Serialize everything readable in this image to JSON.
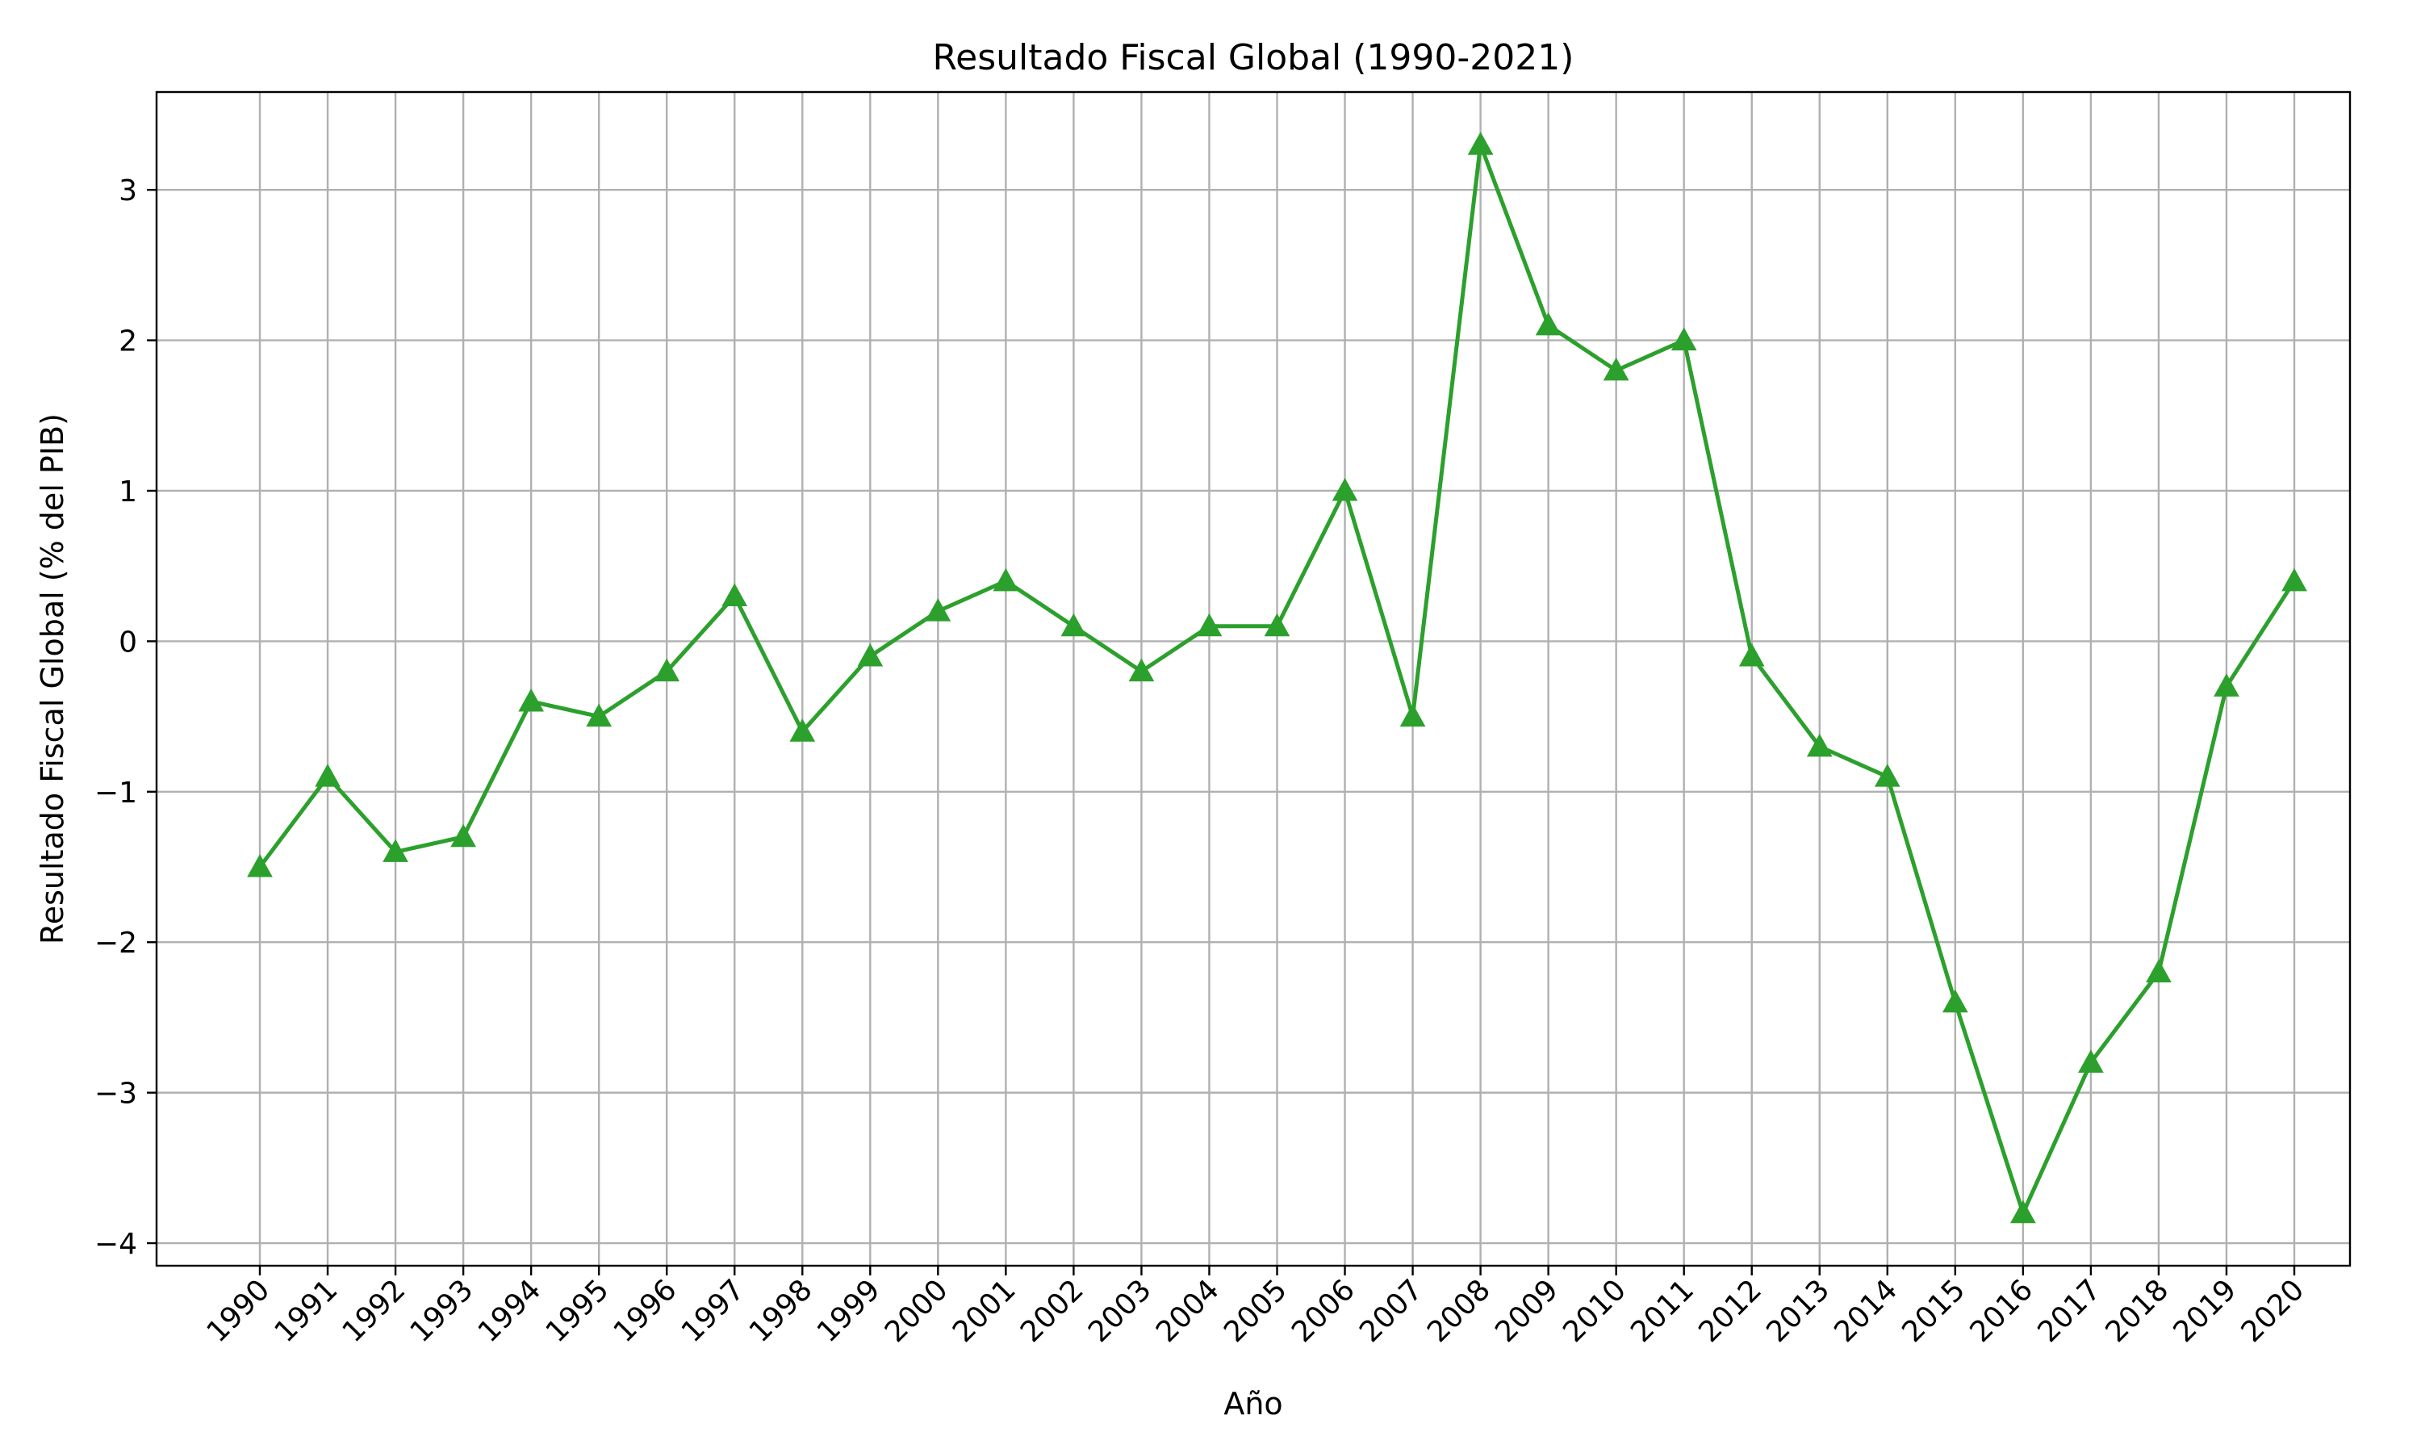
{
  "chart_data": {
    "type": "line",
    "title": "Resultado Fiscal Global (1990-2021)",
    "xlabel": "Año",
    "ylabel": "Resultado Fiscal Global (% del PIB)",
    "x": [
      "1990",
      "1991",
      "1992",
      "1993",
      "1994",
      "1995",
      "1996",
      "1997",
      "1998",
      "1999",
      "2000",
      "2001",
      "2002",
      "2003",
      "2004",
      "2005",
      "2006",
      "2007",
      "2008",
      "2009",
      "2010",
      "2011",
      "2012",
      "2013",
      "2014",
      "2015",
      "2016",
      "2017",
      "2018",
      "2019",
      "2020"
    ],
    "series": [
      {
        "values": [
          -1.5,
          -0.9,
          -1.4,
          -1.3,
          -0.4,
          -0.5,
          -0.2,
          0.3,
          -0.6,
          -0.1,
          0.2,
          0.4,
          0.1,
          -0.2,
          0.1,
          0.1,
          1.0,
          -0.5,
          3.3,
          2.1,
          1.8,
          2.0,
          -0.1,
          -0.7,
          -0.9,
          -2.4,
          -3.8,
          -2.8,
          -2.2,
          -0.3,
          0.4
        ],
        "color": "#2ca02c",
        "marker": "triangle-up"
      }
    ],
    "yticks": [
      -4,
      -3,
      -2,
      -1,
      0,
      1,
      2,
      3
    ],
    "ytick_labels": [
      "−4",
      "−3",
      "−2",
      "−1",
      "0",
      "1",
      "2",
      "3"
    ],
    "ylim": [
      -4.15,
      3.65
    ],
    "grid": true,
    "legend": "none"
  }
}
